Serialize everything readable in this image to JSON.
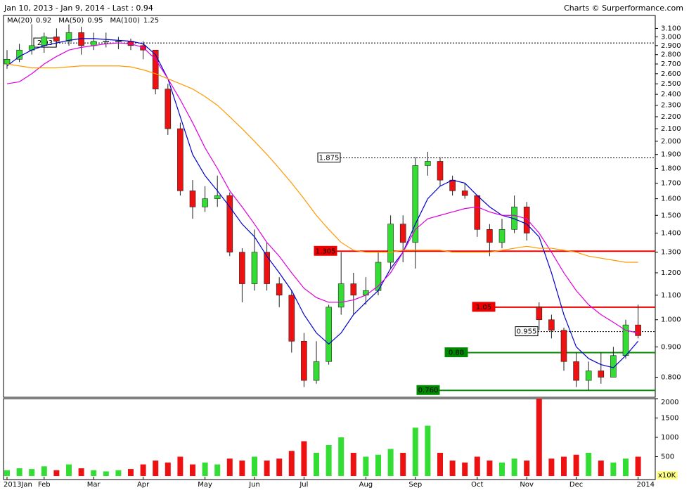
{
  "chart_data": {
    "type": "candlestick",
    "title": "Jan 10, 2013 - Jan 9, 2014 - Last : 0.94",
    "source": "Charts © Surperformance.com",
    "categories": [
      "2013Jan",
      null,
      null,
      "Feb",
      null,
      null,
      null,
      "Mar",
      null,
      null,
      null,
      "Apr",
      null,
      null,
      null,
      null,
      "May",
      null,
      null,
      null,
      "Jun",
      null,
      null,
      null,
      "Jul",
      null,
      null,
      null,
      null,
      "Aug",
      null,
      null,
      null,
      "Sep",
      null,
      null,
      null,
      null,
      "Oct",
      null,
      null,
      null,
      "Nov",
      null,
      null,
      null,
      "Dec",
      null,
      null,
      null,
      null,
      "2014"
    ],
    "open": [
      2.7,
      2.75,
      2.85,
      2.9,
      3.0,
      2.95,
      3.05,
      2.9,
      2.95,
      2.95,
      2.95,
      2.9,
      2.85,
      2.45,
      2.1,
      1.65,
      1.55,
      1.6,
      1.62,
      1.3,
      1.15,
      1.3,
      1.15,
      1.1,
      0.92,
      0.79,
      0.85,
      1.05,
      1.15,
      1.1,
      1.12,
      1.25,
      1.45,
      1.35,
      1.82,
      1.85,
      1.72,
      1.65,
      1.62,
      1.42,
      1.35,
      1.42,
      1.55,
      1.05,
      1.0,
      0.96,
      0.85,
      0.79,
      0.82,
      0.8,
      0.87,
      0.98
    ],
    "high": [
      2.85,
      2.92,
      3.15,
      3.05,
      3.1,
      3.15,
      3.12,
      3.05,
      3.05,
      3.0,
      2.98,
      2.95,
      2.85,
      2.5,
      2.15,
      1.72,
      1.68,
      1.75,
      1.64,
      1.32,
      1.42,
      1.35,
      1.18,
      1.12,
      0.95,
      0.92,
      1.06,
      1.3,
      1.2,
      1.18,
      1.3,
      1.5,
      1.5,
      1.88,
      1.92,
      1.88,
      1.75,
      1.7,
      1.62,
      1.45,
      1.48,
      1.62,
      1.58,
      1.07,
      1.02,
      0.97,
      0.88,
      0.85,
      0.88,
      0.9,
      1.0,
      1.06
    ],
    "low": [
      2.65,
      2.72,
      2.8,
      2.82,
      2.88,
      2.9,
      2.8,
      2.85,
      2.88,
      2.86,
      2.85,
      2.75,
      2.4,
      2.05,
      1.62,
      1.48,
      1.52,
      1.55,
      1.28,
      1.07,
      1.12,
      1.12,
      1.05,
      0.88,
      0.77,
      0.78,
      0.84,
      1.02,
      1.02,
      1.06,
      1.1,
      1.22,
      1.25,
      1.22,
      1.75,
      1.68,
      1.62,
      1.6,
      1.38,
      1.28,
      1.32,
      1.4,
      1.36,
      0.96,
      0.93,
      0.82,
      0.77,
      0.76,
      0.78,
      0.8,
      0.86,
      0.93
    ],
    "close": [
      2.75,
      2.85,
      2.9,
      3.0,
      2.95,
      3.05,
      2.9,
      2.95,
      2.95,
      2.95,
      2.9,
      2.85,
      2.45,
      2.1,
      1.65,
      1.55,
      1.6,
      1.62,
      1.3,
      1.15,
      1.3,
      1.15,
      1.1,
      0.92,
      0.79,
      0.85,
      1.05,
      1.15,
      1.1,
      1.12,
      1.25,
      1.45,
      1.35,
      1.82,
      1.85,
      1.72,
      1.65,
      1.62,
      1.42,
      1.35,
      1.42,
      1.55,
      1.4,
      1.0,
      0.96,
      0.85,
      0.79,
      0.82,
      0.8,
      0.87,
      0.98,
      0.94
    ],
    "volume": [
      150,
      200,
      180,
      250,
      150,
      300,
      200,
      150,
      120,
      150,
      180,
      300,
      400,
      350,
      500,
      300,
      350,
      300,
      450,
      400,
      500,
      400,
      450,
      650,
      900,
      600,
      800,
      1000,
      600,
      500,
      550,
      700,
      600,
      1250,
      1300,
      600,
      400,
      350,
      500,
      400,
      350,
      450,
      400,
      2000,
      450,
      500,
      550,
      600,
      400,
      350,
      450,
      500
    ],
    "up_color": "#33dd33",
    "down_color": "#ee1111",
    "series": [
      {
        "name": "MA(20)",
        "last": 0.92,
        "color": "#0000cc",
        "values": [
          2.68,
          2.78,
          2.85,
          2.9,
          2.93,
          2.96,
          2.98,
          2.98,
          2.97,
          2.96,
          2.95,
          2.92,
          2.8,
          2.55,
          2.2,
          1.9,
          1.75,
          1.65,
          1.55,
          1.45,
          1.38,
          1.28,
          1.2,
          1.12,
          1.02,
          0.95,
          0.91,
          0.95,
          1.02,
          1.07,
          1.12,
          1.22,
          1.3,
          1.45,
          1.6,
          1.68,
          1.72,
          1.7,
          1.62,
          1.55,
          1.5,
          1.48,
          1.45,
          1.38,
          1.2,
          1.02,
          0.9,
          0.86,
          0.84,
          0.83,
          0.87,
          0.92
        ]
      },
      {
        "name": "MA(50)",
        "last": 0.95,
        "color": "#dd00dd",
        "values": [
          2.5,
          2.52,
          2.6,
          2.7,
          2.78,
          2.85,
          2.88,
          2.9,
          2.92,
          2.93,
          2.92,
          2.88,
          2.75,
          2.55,
          2.35,
          2.15,
          1.95,
          1.8,
          1.65,
          1.55,
          1.45,
          1.35,
          1.28,
          1.2,
          1.13,
          1.09,
          1.07,
          1.07,
          1.08,
          1.1,
          1.14,
          1.2,
          1.3,
          1.42,
          1.48,
          1.5,
          1.52,
          1.54,
          1.55,
          1.52,
          1.5,
          1.5,
          1.48,
          1.4,
          1.3,
          1.2,
          1.12,
          1.06,
          1.02,
          0.99,
          0.96,
          0.95
        ]
      },
      {
        "name": "MA(100)",
        "last": 1.25,
        "color": "#ff9900",
        "values": [
          2.7,
          2.68,
          2.66,
          2.66,
          2.66,
          2.67,
          2.68,
          2.68,
          2.68,
          2.68,
          2.67,
          2.64,
          2.6,
          2.55,
          2.5,
          2.45,
          2.38,
          2.3,
          2.2,
          2.1,
          2.0,
          1.9,
          1.8,
          1.7,
          1.6,
          1.5,
          1.42,
          1.35,
          1.31,
          1.3,
          1.3,
          1.3,
          1.31,
          1.31,
          1.31,
          1.31,
          1.3,
          1.3,
          1.3,
          1.3,
          1.31,
          1.32,
          1.33,
          1.32,
          1.32,
          1.31,
          1.3,
          1.28,
          1.27,
          1.26,
          1.25,
          1.25
        ]
      }
    ],
    "annotations": [
      {
        "value": 2.93,
        "color": "#000000",
        "dashed": true
      },
      {
        "value": 1.875,
        "color": "#000000",
        "dashed": true
      },
      {
        "value": 1.305,
        "color": "#ee0000",
        "dashed": false
      },
      {
        "value": 1.05,
        "color": "#ee0000",
        "dashed": false
      },
      {
        "value": 0.955,
        "color": "#000000",
        "dashed": true
      },
      {
        "value": 0.88,
        "color": "#008800",
        "dashed": false
      },
      {
        "value": 0.76,
        "label": "0.760",
        "color": "#008800",
        "dashed": false
      }
    ],
    "ylim": [
      0.74,
      3.26
    ],
    "log_scale": true,
    "yticks": [
      {
        "value": 3.1,
        "label": "3.100"
      },
      {
        "value": 3.0,
        "label": "3.000"
      },
      {
        "value": 2.9,
        "label": "2.900"
      },
      {
        "value": 2.8,
        "label": "2.800"
      },
      {
        "value": 2.7,
        "label": "2.700"
      },
      {
        "value": 2.6,
        "label": "2.600"
      },
      {
        "value": 2.5,
        "label": "2.500"
      },
      {
        "value": 2.4,
        "label": "2.400"
      },
      {
        "value": 2.3,
        "label": "2.300"
      },
      {
        "value": 2.2,
        "label": "2.200"
      },
      {
        "value": 2.1,
        "label": "2.100"
      },
      {
        "value": 2.0,
        "label": "2.000"
      },
      {
        "value": 1.9,
        "label": "1.900"
      },
      {
        "value": 1.8,
        "label": "1.800"
      },
      {
        "value": 1.7,
        "label": "1.700"
      },
      {
        "value": 1.6,
        "label": "1.600"
      },
      {
        "value": 1.5,
        "label": "1.500"
      },
      {
        "value": 1.4,
        "label": "1.400"
      },
      {
        "value": 1.3,
        "label": "1.300"
      },
      {
        "value": 1.2,
        "label": "1.200"
      },
      {
        "value": 1.1,
        "label": "1.100"
      },
      {
        "value": 1.0,
        "label": "1.000"
      },
      {
        "value": 0.9,
        "label": "0.900"
      },
      {
        "value": 0.8,
        "label": "0.800"
      }
    ],
    "y2lim": [
      0,
      2000
    ],
    "y2ticks": [
      500,
      1000,
      1500,
      2000
    ],
    "volume_unit": "x10K"
  }
}
